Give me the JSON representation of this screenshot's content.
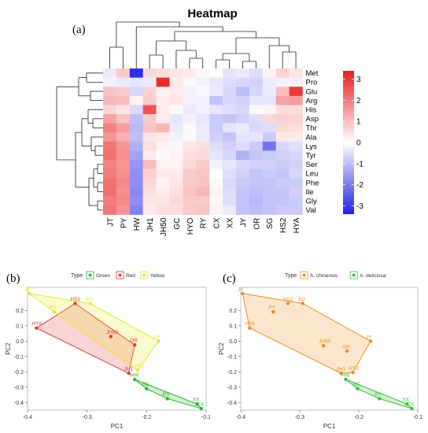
{
  "chart_data": [
    {
      "type": "heatmap",
      "panel_label": "(a)",
      "title": "Heatmap",
      "columns": [
        "JT",
        "PY",
        "HW",
        "JH1",
        "JH50",
        "GC",
        "HYO",
        "RY",
        "CX",
        "XX",
        "JY",
        "OR",
        "SG",
        "HS2",
        "HYA"
      ],
      "rows": [
        "Met",
        "Pro",
        "Glu",
        "Arg",
        "His",
        "Asp",
        "Thr",
        "Ala",
        "Lys",
        "Tyr",
        "Ser",
        "Leu",
        "Phe",
        "Ile",
        "Gly",
        "Val"
      ],
      "values": [
        [
          -0.3,
          0.8,
          -3.2,
          0.6,
          0.5,
          0.4,
          0.3,
          0.1,
          0.0,
          -0.4,
          -0.3,
          -0.5,
          0.2,
          0.7,
          0.4
        ],
        [
          -0.2,
          -0.3,
          -0.4,
          -0.3,
          3.2,
          0.3,
          0.1,
          -0.2,
          -0.4,
          -0.5,
          -0.6,
          -0.7,
          -0.3,
          -0.2,
          -0.2
        ],
        [
          0.9,
          0.8,
          -0.6,
          0.7,
          0.2,
          0.3,
          -0.2,
          -0.1,
          -0.3,
          -0.6,
          -1.0,
          -0.6,
          -0.3,
          1.0,
          3.0
        ],
        [
          1.1,
          1.0,
          0.2,
          0.8,
          0.3,
          0.4,
          -0.2,
          -0.2,
          -0.9,
          -0.6,
          -0.7,
          -0.4,
          -0.4,
          1.4,
          1.5
        ],
        [
          0.6,
          0.4,
          -0.6,
          2.6,
          0.3,
          0.1,
          -0.3,
          -0.2,
          -0.4,
          -0.5,
          -0.6,
          -0.1,
          0.2,
          0.5,
          0.5
        ],
        [
          1.4,
          0.9,
          -1.0,
          0.8,
          0.3,
          -0.4,
          -0.2,
          -0.4,
          -0.8,
          -0.9,
          -0.7,
          -0.5,
          0.6,
          0.7,
          0.7
        ],
        [
          1.9,
          1.5,
          -1.1,
          0.9,
          1.1,
          -0.3,
          0.1,
          -0.3,
          -0.8,
          -0.4,
          -0.3,
          -0.6,
          -0.5,
          0.6,
          0.5
        ],
        [
          1.6,
          1.2,
          -1.0,
          0.4,
          0.3,
          -0.2,
          0.1,
          -0.3,
          -0.7,
          -0.9,
          -0.4,
          -0.4,
          -0.8,
          0.4,
          0.3
        ],
        [
          2.1,
          1.6,
          -1.2,
          0.5,
          0.2,
          -0.1,
          0.4,
          0.5,
          -0.5,
          -0.7,
          -0.5,
          -0.8,
          -2.1,
          -0.6,
          -0.5
        ],
        [
          2.2,
          1.7,
          -1.4,
          0.3,
          0.1,
          0.2,
          0.5,
          0.6,
          -0.4,
          -0.6,
          -1.2,
          -0.9,
          -0.8,
          -0.7,
          -0.6
        ],
        [
          1.9,
          1.6,
          -1.6,
          1.0,
          0.2,
          0.2,
          0.6,
          0.8,
          -0.2,
          -0.4,
          -0.6,
          -0.7,
          -0.7,
          -0.8,
          -0.7
        ],
        [
          2.0,
          1.7,
          -1.7,
          0.7,
          0.3,
          0.3,
          0.8,
          0.9,
          0.0,
          -0.5,
          -0.7,
          -0.9,
          -0.8,
          -0.9,
          -0.6
        ],
        [
          2.2,
          1.8,
          -1.7,
          0.6,
          0.2,
          0.4,
          0.8,
          0.9,
          0.1,
          -0.6,
          -0.8,
          -0.9,
          -0.9,
          -0.8,
          -0.8
        ],
        [
          2.2,
          1.7,
          -1.8,
          0.5,
          0.3,
          0.5,
          0.9,
          1.1,
          0.2,
          -0.5,
          -0.9,
          -1.0,
          -0.9,
          -0.9,
          -0.7
        ],
        [
          2.0,
          1.8,
          -1.7,
          0.4,
          0.4,
          0.6,
          0.8,
          0.8,
          0.1,
          -0.5,
          -0.9,
          -1.1,
          -0.9,
          -0.9,
          -0.8
        ],
        [
          2.1,
          1.6,
          -1.9,
          0.3,
          0.5,
          0.5,
          0.8,
          0.9,
          0.2,
          -0.3,
          -0.9,
          -1.0,
          -0.9,
          -0.8,
          -0.8
        ]
      ],
      "color_scale": {
        "min": -3.4,
        "max": 3.4,
        "low": "#2020e8",
        "mid": "#ffffff",
        "high": "#ea2020"
      },
      "legend_ticks": [
        3,
        2,
        1,
        0,
        -1,
        -2,
        -3
      ],
      "legend_tick_labels": [
        "3",
        "2",
        "1",
        "0",
        "-1",
        "-2",
        "-3"
      ]
    },
    {
      "type": "scatter",
      "panel_label": "(b)",
      "xlabel": "PC1",
      "ylabel": "PC2",
      "xlim": [
        -0.4,
        -0.1
      ],
      "ylim": [
        -0.45,
        0.35
      ],
      "xticks": [
        -0.4,
        -0.3,
        -0.2,
        -0.1
      ],
      "xtick_labels": [
        "-0.4",
        "-0.3",
        "-0.2",
        "-0.1"
      ],
      "yticks": [
        0.2,
        0.1,
        0.0,
        -0.1,
        -0.2,
        -0.3,
        -0.4
      ],
      "ytick_labels": [
        "0.2",
        "0.1",
        "0.0",
        "-0.1",
        "-0.2",
        "-0.3",
        "-0.4"
      ],
      "legend_title": "Type",
      "series": [
        {
          "name": "Green",
          "color": "#2db52d",
          "points": [
            {
              "label": "HW",
              "x": -0.22,
              "y": -0.25
            },
            {
              "label": "GC",
              "x": -0.2,
              "y": -0.31
            },
            {
              "label": "RY",
              "x": -0.165,
              "y": -0.375
            },
            {
              "label": "XX",
              "x": -0.115,
              "y": -0.41
            },
            {
              "label": "CX",
              "x": -0.108,
              "y": -0.44
            }
          ]
        },
        {
          "name": "Red",
          "color": "#e23b3b",
          "points": [
            {
              "label": "HS2",
              "x": -0.32,
              "y": 0.245
            },
            {
              "label": "HYA",
              "x": -0.385,
              "y": 0.085
            },
            {
              "label": "JH50",
              "x": -0.26,
              "y": 0.03
            },
            {
              "label": "OR",
              "x": -0.22,
              "y": -0.025
            },
            {
              "label": "JH1",
              "x": -0.23,
              "y": -0.21
            }
          ]
        },
        {
          "name": "Yellow",
          "color": "#e8e82a",
          "points": [
            {
              "label": "JT",
              "x": -0.397,
              "y": 0.31
            },
            {
              "label": "SG",
              "x": -0.295,
              "y": 0.245
            },
            {
              "label": "PY",
              "x": -0.355,
              "y": 0.19
            },
            {
              "label": "JY",
              "x": -0.18,
              "y": 0.0
            },
            {
              "label": "HYO",
              "x": -0.215,
              "y": -0.19
            }
          ]
        }
      ]
    },
    {
      "type": "scatter",
      "panel_label": "(c)",
      "xlabel": "PC1",
      "ylabel": "PC2",
      "xlim": [
        -0.4,
        -0.1
      ],
      "ylim": [
        -0.45,
        0.35
      ],
      "xticks": [
        -0.4,
        -0.3,
        -0.2,
        -0.1
      ],
      "xtick_labels": [
        "-0.4",
        "-0.3",
        "-0.2",
        "-0.1"
      ],
      "yticks": [
        0.2,
        0.1,
        0.0,
        -0.1,
        -0.2,
        -0.3,
        -0.4
      ],
      "ytick_labels": [
        "0.2",
        "0.1",
        "0.0",
        "-0.1",
        "-0.2",
        "-0.3",
        "-0.4"
      ],
      "legend_title": "Type",
      "series": [
        {
          "name": "A. chinensis",
          "color": "#f08c1e",
          "points": [
            {
              "label": "JT",
              "x": -0.397,
              "y": 0.31
            },
            {
              "label": "HS2",
              "x": -0.32,
              "y": 0.245
            },
            {
              "label": "SG",
              "x": -0.295,
              "y": 0.245
            },
            {
              "label": "PY",
              "x": -0.345,
              "y": 0.19
            },
            {
              "label": "HYA",
              "x": -0.385,
              "y": 0.085
            },
            {
              "label": "JY",
              "x": -0.18,
              "y": 0.0
            },
            {
              "label": "JH50",
              "x": -0.26,
              "y": -0.03
            },
            {
              "label": "OR",
              "x": -0.22,
              "y": -0.065
            },
            {
              "label": "JH1",
              "x": -0.23,
              "y": -0.21
            },
            {
              "label": "HYO",
              "x": -0.21,
              "y": -0.205
            }
          ]
        },
        {
          "name": "A. deliciosa",
          "color": "#38c038",
          "points": [
            {
              "label": "HW",
              "x": -0.222,
              "y": -0.25
            },
            {
              "label": "GC",
              "x": -0.202,
              "y": -0.31
            },
            {
              "label": "RY",
              "x": -0.165,
              "y": -0.375
            },
            {
              "label": "XX",
              "x": -0.118,
              "y": -0.41
            },
            {
              "label": "CX",
              "x": -0.11,
              "y": -0.44
            }
          ]
        }
      ]
    }
  ]
}
